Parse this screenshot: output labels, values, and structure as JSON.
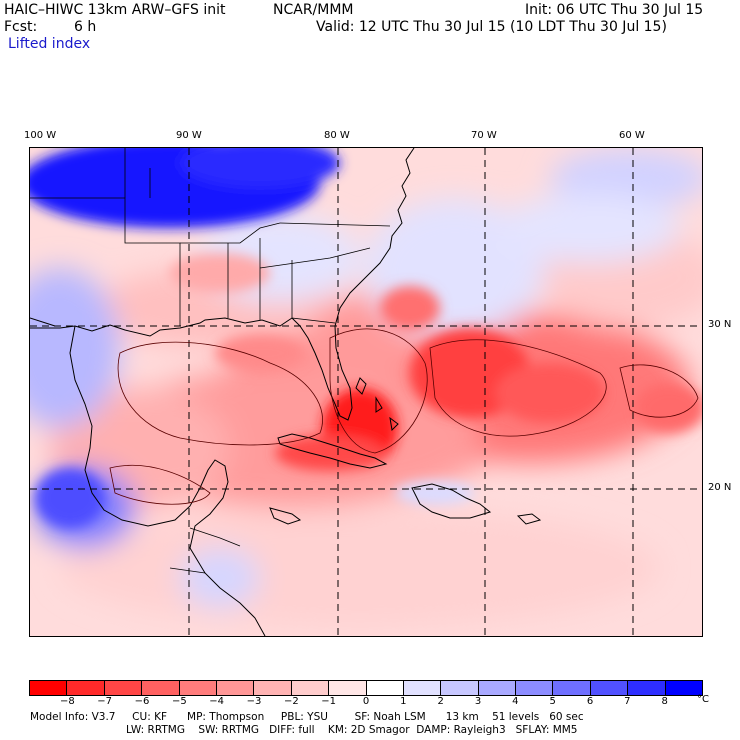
{
  "header": {
    "model": "HAIC–HIWC 13km ARW–GFS init",
    "org": "NCAR/MMM",
    "init": "Init: 06 UTC Thu 30 Jul 15",
    "fcst_label": "Fcst:",
    "fcst_value": "6 h",
    "valid": "Valid: 12 UTC Thu 30 Jul 15 (10 LDT Thu 30 Jul 15)",
    "field": "Lifted index"
  },
  "map": {
    "region": "Gulf of Mexico, Caribbean and western Atlantic",
    "longitude_labels": [
      "100 W",
      "90 W",
      "80 W",
      "70 W",
      "60 W"
    ],
    "latitude_labels": [
      "30 N",
      "20 N"
    ]
  },
  "colorbar": {
    "unit": "°C",
    "ticks": [
      "−8",
      "−7",
      "−6",
      "−5",
      "−4",
      "−3",
      "−2",
      "−1",
      "0",
      "1",
      "2",
      "3",
      "4",
      "5",
      "6",
      "7",
      "8"
    ],
    "colors": [
      "#ff0000",
      "#ff2a2a",
      "#ff4646",
      "#ff6161",
      "#ff7c7c",
      "#ff9797",
      "#ffb3b3",
      "#ffcccc",
      "#ffe6e6",
      "#ffffff",
      "#e1e1ff",
      "#c7c7ff",
      "#a9a9ff",
      "#8c8cff",
      "#6f6fff",
      "#5151ff",
      "#2e2eff",
      "#0000ff"
    ]
  },
  "model_info": {
    "line1": "Model Info: V3.7     CU: KF      MP: Thompson     PBL: YSU        SF: Noah LSM      13 km    51 levels   60 sec",
    "line2": "LW: RRTMG    SW: RRTMG   DIFF: full    KM: 2D Smagor  DAMP: Rayleigh3   SFLAY: MM5"
  }
}
